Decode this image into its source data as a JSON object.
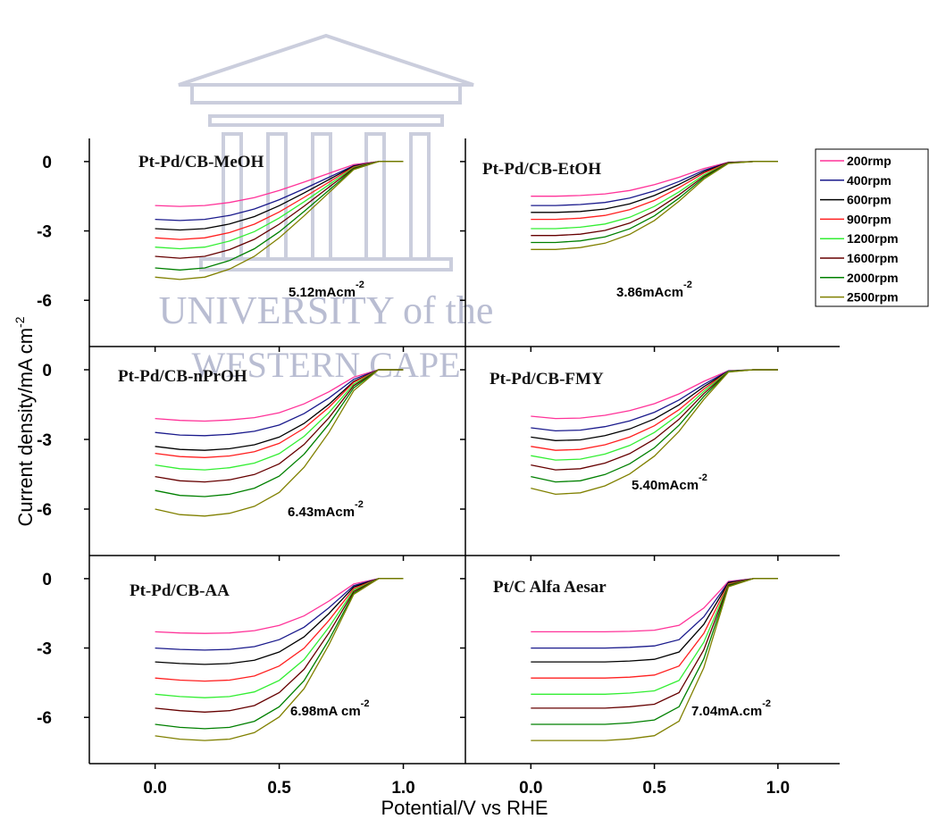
{
  "chart_data": {
    "type": "line",
    "xlabel": "Potential/V vs RHE",
    "ylabel": {
      "text": "Current density/mA cm",
      "sup": "-2"
    },
    "xlim": [
      -0.265,
      1.25
    ],
    "xticks": [
      {
        "value": 0,
        "label": "0.0"
      },
      0.5,
      {
        "value": 1,
        "label": "1.0"
      }
    ],
    "ylim": [
      -8,
      1
    ],
    "yticks": [
      0,
      -3,
      -6
    ],
    "legend": [
      {
        "name": "200rmp",
        "color": "#ff3399"
      },
      {
        "name": "400rpm",
        "color": "#1a1a8c"
      },
      {
        "name": "600rpm",
        "color": "#000000"
      },
      {
        "name": "900rpm",
        "color": "#ff2020"
      },
      {
        "name": "1200rpm",
        "color": "#33ee33"
      },
      {
        "name": "1600rpm",
        "color": "#660000"
      },
      {
        "name": "2000rpm",
        "color": "#008000"
      },
      {
        "name": "2500rpm",
        "color": "#808000"
      }
    ],
    "panels": [
      {
        "title": "Pt-Pd/CB-MeOH",
        "annotation": {
          "text": "5.12mAcm",
          "sup": "-2"
        },
        "x": [
          0,
          0.1,
          0.2,
          0.3,
          0.4,
          0.5,
          0.6,
          0.7,
          0.8,
          0.9,
          1.0
        ],
        "series": [
          {
            "values": [
              -1.9,
              -1.94,
              -1.9,
              -1.77,
              -1.56,
              -1.25,
              -0.89,
              -0.51,
              -0.13,
              0,
              0
            ]
          },
          {
            "values": [
              -2.5,
              -2.55,
              -2.5,
              -2.33,
              -2.05,
              -1.65,
              -1.18,
              -0.68,
              -0.18,
              0,
              0
            ]
          },
          {
            "values": [
              -2.9,
              -2.96,
              -2.9,
              -2.7,
              -2.38,
              -1.91,
              -1.36,
              -0.78,
              -0.2,
              0,
              0
            ]
          },
          {
            "values": [
              -3.3,
              -3.37,
              -3.3,
              -3.07,
              -2.71,
              -2.18,
              -1.55,
              -0.89,
              -0.23,
              0,
              0
            ]
          },
          {
            "values": [
              -3.7,
              -3.77,
              -3.7,
              -3.44,
              -3.03,
              -2.44,
              -1.74,
              -1.0,
              -0.26,
              0,
              0
            ]
          },
          {
            "values": [
              -4.1,
              -4.18,
              -4.1,
              -3.81,
              -3.36,
              -2.71,
              -1.93,
              -1.11,
              -0.29,
              0,
              0
            ]
          },
          {
            "values": [
              -4.6,
              -4.69,
              -4.6,
              -4.28,
              -3.77,
              -3.04,
              -2.16,
              -1.24,
              -0.32,
              0,
              0
            ]
          },
          {
            "values": [
              -5.0,
              -5.1,
              -5.0,
              -4.65,
              -4.1,
              -3.3,
              -2.35,
              -1.35,
              -0.35,
              0,
              0
            ]
          }
        ]
      },
      {
        "title": "Pt-Pd/CB-EtOH",
        "annotation": {
          "text": "3.86mAcm",
          "sup": "-2"
        },
        "x": [
          0,
          0.1,
          0.2,
          0.3,
          0.4,
          0.5,
          0.6,
          0.7,
          0.8,
          0.9,
          1.0
        ],
        "series": [
          {
            "values": [
              -1.5,
              -1.5,
              -1.47,
              -1.4,
              -1.25,
              -1.0,
              -0.68,
              -0.3,
              -0.03,
              0,
              0
            ]
          },
          {
            "values": [
              -1.9,
              -1.9,
              -1.86,
              -1.77,
              -1.58,
              -1.27,
              -0.86,
              -0.38,
              -0.04,
              0,
              0
            ]
          },
          {
            "values": [
              -2.2,
              -2.2,
              -2.16,
              -2.05,
              -1.83,
              -1.47,
              -0.99,
              -0.44,
              -0.04,
              0,
              0
            ]
          },
          {
            "values": [
              -2.5,
              -2.5,
              -2.45,
              -2.33,
              -2.08,
              -1.68,
              -1.13,
              -0.5,
              -0.05,
              0,
              0
            ]
          },
          {
            "values": [
              -2.9,
              -2.9,
              -2.84,
              -2.7,
              -2.41,
              -1.94,
              -1.31,
              -0.58,
              -0.06,
              0,
              0
            ]
          },
          {
            "values": [
              -3.2,
              -3.2,
              -3.14,
              -2.98,
              -2.66,
              -2.14,
              -1.44,
              -0.64,
              -0.06,
              0,
              0
            ]
          },
          {
            "values": [
              -3.5,
              -3.5,
              -3.43,
              -3.26,
              -2.91,
              -2.35,
              -1.58,
              -0.7,
              -0.07,
              0,
              0
            ]
          },
          {
            "values": [
              -3.8,
              -3.8,
              -3.72,
              -3.53,
              -3.15,
              -2.55,
              -1.71,
              -0.76,
              -0.08,
              0,
              0
            ]
          }
        ]
      },
      {
        "title": "Pt-Pd/CB-nPrOH",
        "annotation": {
          "text": "6.43mAcm",
          "sup": "-2"
        },
        "x": [
          0,
          0.1,
          0.2,
          0.3,
          0.4,
          0.5,
          0.6,
          0.7,
          0.8,
          0.9,
          1.0
        ],
        "series": [
          {
            "values": [
              -2.1,
              -2.18,
              -2.21,
              -2.16,
              -2.06,
              -1.85,
              -1.47,
              -0.95,
              -0.32,
              0,
              0
            ]
          },
          {
            "values": [
              -2.7,
              -2.81,
              -2.84,
              -2.78,
              -2.65,
              -2.38,
              -1.89,
              -1.22,
              -0.41,
              0,
              0
            ]
          },
          {
            "values": [
              -3.3,
              -3.43,
              -3.47,
              -3.4,
              -3.23,
              -2.9,
              -2.31,
              -1.49,
              -0.5,
              0,
              0
            ]
          },
          {
            "values": [
              -3.6,
              -3.74,
              -3.78,
              -3.71,
              -3.53,
              -3.17,
              -2.52,
              -1.62,
              -0.54,
              0,
              0
            ]
          },
          {
            "values": [
              -4.1,
              -4.26,
              -4.31,
              -4.22,
              -4.02,
              -3.61,
              -2.87,
              -1.85,
              -0.62,
              0,
              0
            ]
          },
          {
            "values": [
              -4.6,
              -4.78,
              -4.83,
              -4.74,
              -4.51,
              -4.05,
              -3.22,
              -2.07,
              -0.69,
              0,
              0
            ]
          },
          {
            "values": [
              -5.2,
              -5.41,
              -5.46,
              -5.36,
              -5.1,
              -4.58,
              -3.64,
              -2.34,
              -0.78,
              0,
              0
            ]
          },
          {
            "values": [
              -6.0,
              -6.24,
              -6.3,
              -6.18,
              -5.88,
              -5.28,
              -4.2,
              -2.7,
              -0.9,
              0,
              0
            ]
          }
        ]
      },
      {
        "title": "Pt-Pd/CB-FMY",
        "annotation": {
          "text": "5.40mAcm",
          "sup": "-2"
        },
        "x": [
          0,
          0.1,
          0.2,
          0.3,
          0.4,
          0.5,
          0.6,
          0.7,
          0.8,
          0.9,
          1.0
        ],
        "series": [
          {
            "values": [
              -2.0,
              -2.1,
              -2.08,
              -1.96,
              -1.76,
              -1.46,
              -1.04,
              -0.5,
              -0.04,
              0,
              0
            ]
          },
          {
            "values": [
              -2.5,
              -2.63,
              -2.6,
              -2.45,
              -2.2,
              -1.83,
              -1.3,
              -0.63,
              -0.05,
              0,
              0
            ]
          },
          {
            "values": [
              -2.9,
              -3.05,
              -3.02,
              -2.84,
              -2.55,
              -2.12,
              -1.51,
              -0.73,
              -0.06,
              0,
              0
            ]
          },
          {
            "values": [
              -3.3,
              -3.47,
              -3.43,
              -3.23,
              -2.9,
              -2.41,
              -1.72,
              -0.83,
              -0.07,
              0,
              0
            ]
          },
          {
            "values": [
              -3.7,
              -3.89,
              -3.85,
              -3.63,
              -3.26,
              -2.7,
              -1.92,
              -0.93,
              -0.07,
              0,
              0
            ]
          },
          {
            "values": [
              -4.1,
              -4.31,
              -4.26,
              -4.02,
              -3.61,
              -2.99,
              -2.13,
              -1.03,
              -0.08,
              0,
              0
            ]
          },
          {
            "values": [
              -4.6,
              -4.83,
              -4.78,
              -4.51,
              -4.05,
              -3.36,
              -2.39,
              -1.15,
              -0.09,
              0,
              0
            ]
          },
          {
            "values": [
              -5.1,
              -5.36,
              -5.3,
              -5.0,
              -4.49,
              -3.72,
              -2.65,
              -1.28,
              -0.1,
              0,
              0
            ]
          }
        ]
      },
      {
        "title": "Pt-Pd/CB-AA",
        "annotation": {
          "text": "6.98mA cm",
          "sup": "-2"
        },
        "x": [
          0,
          0.1,
          0.2,
          0.3,
          0.4,
          0.5,
          0.6,
          0.7,
          0.8,
          0.9,
          1.0
        ],
        "series": [
          {
            "values": [
              -2.3,
              -2.35,
              -2.37,
              -2.35,
              -2.25,
              -2.02,
              -1.61,
              -0.97,
              -0.23,
              0,
              0
            ]
          },
          {
            "values": [
              -3.0,
              -3.06,
              -3.09,
              -3.06,
              -2.94,
              -2.64,
              -2.1,
              -1.26,
              -0.3,
              0,
              0
            ]
          },
          {
            "values": [
              -3.6,
              -3.67,
              -3.71,
              -3.67,
              -3.53,
              -3.17,
              -2.52,
              -1.51,
              -0.36,
              0,
              0
            ]
          },
          {
            "values": [
              -4.3,
              -4.39,
              -4.43,
              -4.39,
              -4.21,
              -3.78,
              -3.01,
              -1.81,
              -0.43,
              0,
              0
            ]
          },
          {
            "values": [
              -5.0,
              -5.1,
              -5.15,
              -5.1,
              -4.9,
              -4.4,
              -3.5,
              -2.1,
              -0.5,
              0,
              0
            ]
          },
          {
            "values": [
              -5.6,
              -5.71,
              -5.77,
              -5.71,
              -5.49,
              -4.93,
              -3.92,
              -2.35,
              -0.56,
              0,
              0
            ]
          },
          {
            "values": [
              -6.3,
              -6.43,
              -6.49,
              -6.43,
              -6.17,
              -5.54,
              -4.41,
              -2.65,
              -0.63,
              0,
              0
            ]
          },
          {
            "values": [
              -6.8,
              -6.94,
              -7.0,
              -6.94,
              -6.66,
              -5.98,
              -4.76,
              -2.86,
              -0.68,
              0,
              0
            ]
          }
        ]
      },
      {
        "title": "Pt/C Alfa Aesar",
        "annotation": {
          "text": "7.04mA.cm",
          "sup": "-2"
        },
        "x": [
          0,
          0.1,
          0.2,
          0.3,
          0.4,
          0.5,
          0.6,
          0.7,
          0.8,
          0.9,
          1.0
        ],
        "series": [
          {
            "values": [
              -2.3,
              -2.3,
              -2.3,
              -2.3,
              -2.28,
              -2.23,
              -2.02,
              -1.27,
              -0.12,
              0,
              0
            ]
          },
          {
            "values": [
              -3.0,
              -3.0,
              -3.0,
              -3.0,
              -2.97,
              -2.91,
              -2.64,
              -1.65,
              -0.15,
              0,
              0
            ]
          },
          {
            "values": [
              -3.6,
              -3.6,
              -3.6,
              -3.6,
              -3.56,
              -3.49,
              -3.17,
              -1.98,
              -0.18,
              0,
              0
            ]
          },
          {
            "values": [
              -4.3,
              -4.3,
              -4.3,
              -4.3,
              -4.26,
              -4.17,
              -3.78,
              -2.37,
              -0.22,
              0,
              0
            ]
          },
          {
            "values": [
              -5.0,
              -5.0,
              -5.0,
              -5.0,
              -4.95,
              -4.85,
              -4.4,
              -2.75,
              -0.25,
              0,
              0
            ]
          },
          {
            "values": [
              -5.6,
              -5.6,
              -5.6,
              -5.6,
              -5.54,
              -5.43,
              -4.93,
              -3.08,
              -0.28,
              0,
              0
            ]
          },
          {
            "values": [
              -6.3,
              -6.3,
              -6.3,
              -6.3,
              -6.24,
              -6.11,
              -5.54,
              -3.47,
              -0.32,
              0,
              0
            ]
          },
          {
            "values": [
              -7.0,
              -7.0,
              -7.0,
              -7.0,
              -6.93,
              -6.79,
              -6.16,
              -3.85,
              -0.35,
              0,
              0
            ]
          }
        ]
      }
    ]
  },
  "watermark": {
    "line1": "UNIVERSITY of the",
    "line2": "WESTERN CAPE"
  }
}
